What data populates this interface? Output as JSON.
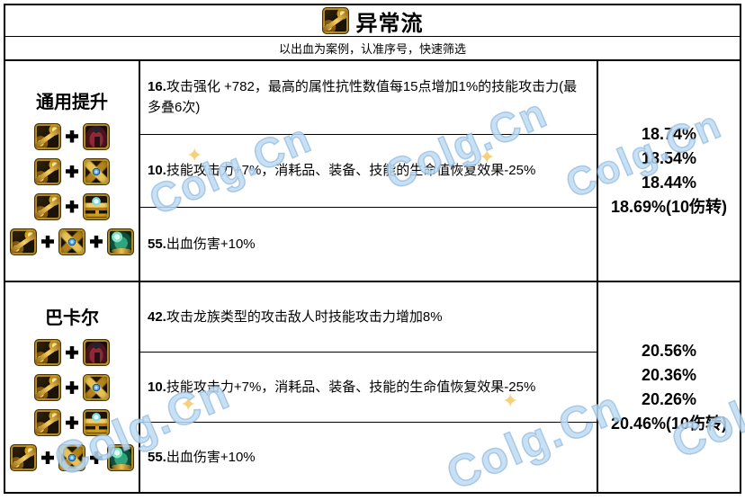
{
  "header": {
    "title": "异常流",
    "title_icons": [
      "gold-emblem"
    ],
    "subtitle": "以出血为案例，认准序号，快速筛选"
  },
  "watermark": {
    "text": "Colg.Cn",
    "star": "✦",
    "color": "#aed2ee",
    "star_color": "#f4cd76"
  },
  "colors": {
    "border": "#000000",
    "gold": "#d4a017",
    "background": "#ffffff"
  },
  "icon_legend": {
    "gold-emblem": "golden emblem equipment icon",
    "red-coat": "dark red coat armor icon",
    "gold-belt": "golden belt with blue gem icon",
    "gold-cup": "golden trophy cup with gem icon",
    "teal-orb": "teal orb ring icon"
  },
  "sections": [
    {
      "name": "通用提升",
      "combos": [
        {
          "icons": [
            "gold-emblem",
            "red-coat"
          ]
        },
        {
          "icons": [
            "gold-emblem",
            "gold-belt"
          ]
        },
        {
          "icons": [
            "gold-emblem",
            "gold-cup"
          ]
        },
        {
          "icons": [
            "gold-emblem",
            "gold-belt",
            "teal-orb"
          ]
        }
      ],
      "effects": [
        {
          "num": "16.",
          "text": "攻击强化 +782，最高的属性抗性数值每15点增加1%的技能攻击力(最多叠6次)"
        },
        {
          "num": "10.",
          "text": "技能攻击力+7%，消耗品、装备、技能的生命值恢复效果-25%"
        },
        {
          "num": "55.",
          "text": "出血伤害+10%"
        }
      ],
      "results": [
        "18.74%",
        "18.54%",
        "18.44%",
        "18.69%(10伤转)"
      ]
    },
    {
      "name": "巴卡尔",
      "combos": [
        {
          "icons": [
            "gold-emblem",
            "red-coat"
          ]
        },
        {
          "icons": [
            "gold-emblem",
            "gold-belt"
          ]
        },
        {
          "icons": [
            "gold-emblem",
            "gold-cup"
          ]
        },
        {
          "icons": [
            "gold-emblem",
            "gold-belt",
            "teal-orb"
          ]
        }
      ],
      "effects": [
        {
          "num": "42.",
          "text": "攻击龙族类型的攻击敌人时技能攻击力增加8%"
        },
        {
          "num": "10.",
          "text": "技能攻击力+7%，消耗品、装备、技能的生命值恢复效果-25%"
        },
        {
          "num": "55.",
          "text": "出血伤害+10%"
        }
      ],
      "results": [
        "20.56%",
        "20.36%",
        "20.26%",
        "20.46%(10伤转)"
      ]
    }
  ]
}
